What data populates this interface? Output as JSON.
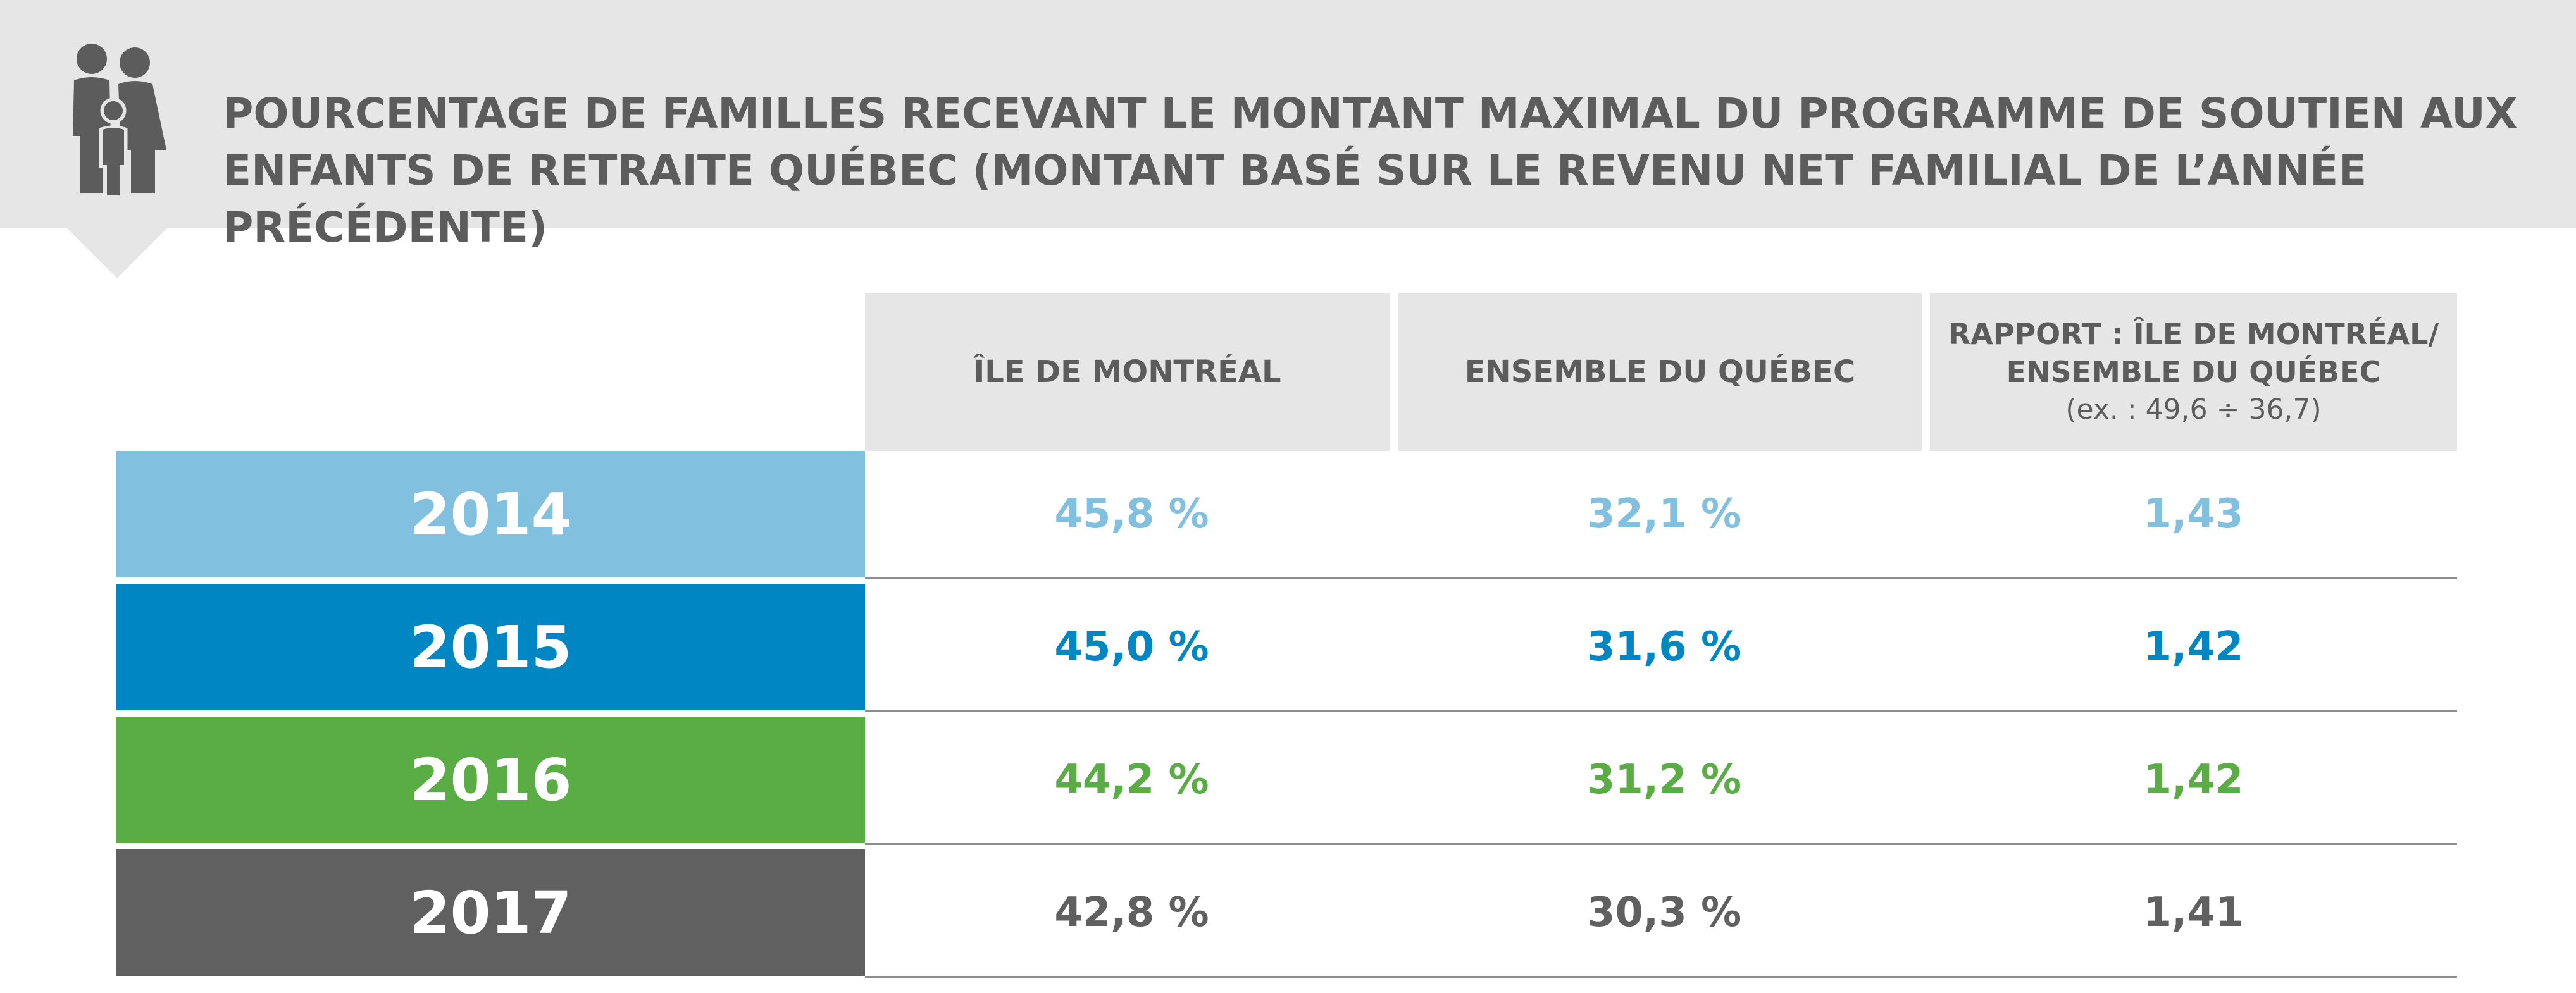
{
  "title": "POURCENTAGE DE FAMILLES RECEVANT LE MONTANT MAXIMAL DU PROGRAMME DE SOUTIEN AUX ENFANTS DE RETRAITE QUÉBEC (MONTANT BASÉ SUR LE REVENU NET FAMILIAL DE L’ANNÉE PRÉCÉDENTE)",
  "icon": "family-icon",
  "columns": {
    "montreal": "ÎLE DE MONTRÉAL",
    "quebec": "ENSEMBLE DU QUÉBEC",
    "ratio_line1": "RAPPORT : ÎLE DE MONTRÉAL/",
    "ratio_line2": "ENSEMBLE DU QUÉBEC",
    "ratio_note": "(ex. : 49,6 ÷ 36,7)"
  },
  "rows": [
    {
      "year": "2014",
      "montreal": "45,8 %",
      "quebec": "32,1 %",
      "ratio": "1,43",
      "color": "#82c0df"
    },
    {
      "year": "2015",
      "montreal": "45,0 %",
      "quebec": "31,6 %",
      "ratio": "1,42",
      "color": "#0086c3"
    },
    {
      "year": "2016",
      "montreal": "44,2 %",
      "quebec": "31,2 %",
      "ratio": "1,42",
      "color": "#5aac44"
    },
    {
      "year": "2017",
      "montreal": "42,8 %",
      "quebec": "30,3 %",
      "ratio": "1,41",
      "color": "#606060"
    }
  ],
  "colors": {
    "header_bg": "#e6e6e6",
    "header_text": "#5c5c5c",
    "divider": "#8c8c8c"
  }
}
